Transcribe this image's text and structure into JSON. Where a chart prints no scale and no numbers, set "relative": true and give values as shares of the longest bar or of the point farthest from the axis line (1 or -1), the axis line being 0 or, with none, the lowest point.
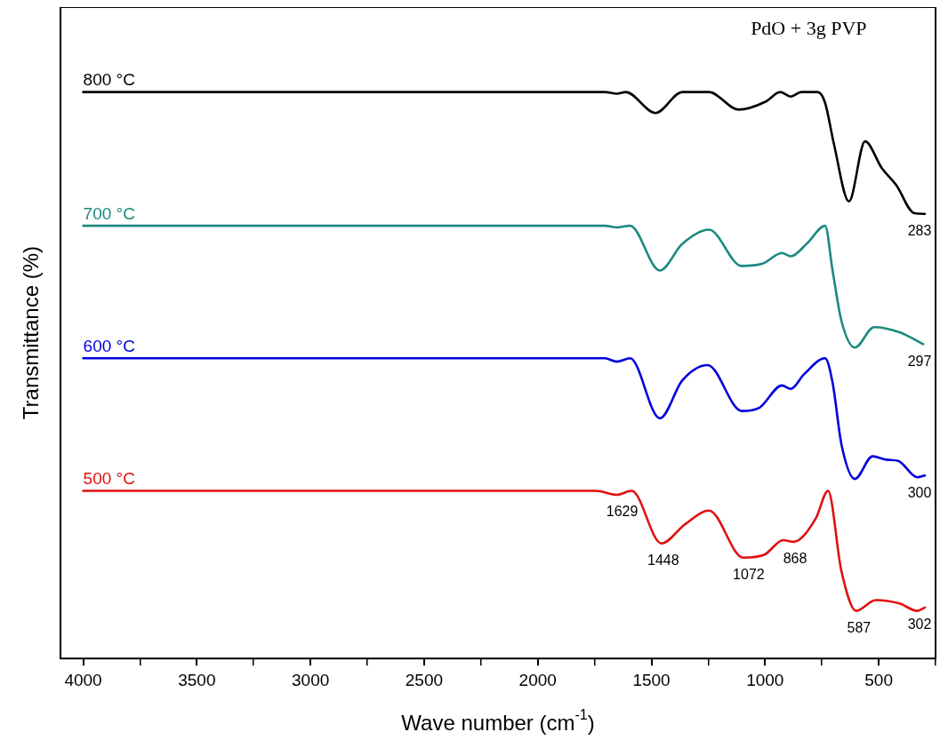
{
  "chart_data": {
    "type": "line",
    "title": "PdO + 3g PVP",
    "xlabel": "Wave number (cm$^{-1}$)",
    "ylabel": "Transmittance (%)",
    "relative": true,
    "legend": false,
    "grid": false,
    "marker": "none",
    "line_style": "solid",
    "xlim": [
      4100,
      250
    ],
    "xticks": [
      4000,
      {
        "value": 3750,
        "label": null
      },
      3500,
      {
        "value": 3250,
        "label": null
      },
      3000,
      {
        "value": 2750,
        "label": null
      },
      2500,
      {
        "value": 2250,
        "label": null
      },
      2000,
      {
        "value": 1750,
        "label": null
      },
      1500,
      {
        "value": 1250,
        "label": null
      },
      1000,
      {
        "value": 750,
        "label": null
      },
      500,
      {
        "value": 250,
        "label": null
      }
    ],
    "series": [
      {
        "name": "800 °C",
        "color": "#000000",
        "x": [
          4000,
          3000,
          2000,
          1705,
          1652,
          1613,
          1482,
          1364,
          1247,
          1116,
          998,
          933,
          887,
          841,
          769,
          736,
          697,
          631,
          560,
          487,
          422,
          343,
          297
        ],
        "values": [
          1,
          1,
          1,
          1,
          0.997,
          1,
          0.963,
          1,
          1,
          0.969,
          0.983,
          1,
          0.992,
          1,
          1,
          0.981,
          0.908,
          0.807,
          0.913,
          0.866,
          0.835,
          0.786,
          0.785
        ]
      },
      {
        "name": "700 °C",
        "color": "#1a8a80",
        "x": [
          4000,
          3000,
          2000,
          1705,
          1652,
          1594,
          1463,
          1364,
          1247,
          1103,
          1011,
          926,
          887,
          815,
          736,
          703,
          664,
          605,
          520,
          409,
          304
        ],
        "values": [
          0.764,
          0.764,
          0.764,
          0.764,
          0.761,
          0.764,
          0.685,
          0.732,
          0.757,
          0.693,
          0.697,
          0.716,
          0.71,
          0.733,
          0.764,
          0.685,
          0.596,
          0.549,
          0.585,
          0.576,
          0.555
        ]
      },
      {
        "name": "600 °C",
        "color": "#0000dd",
        "x": [
          4000,
          3000,
          2000,
          1705,
          1652,
          1594,
          1463,
          1364,
          1253,
          1103,
          1024,
          926,
          887,
          828,
          736,
          703,
          664,
          605,
          527,
          468,
          415,
          330,
          297
        ],
        "values": [
          0.53,
          0.53,
          0.53,
          0.53,
          0.524,
          0.53,
          0.424,
          0.491,
          0.518,
          0.437,
          0.443,
          0.482,
          0.476,
          0.502,
          0.53,
          0.487,
          0.378,
          0.317,
          0.357,
          0.351,
          0.349,
          0.32,
          0.323
        ]
      },
      {
        "name": "500 °C",
        "color": "#e01010",
        "x": [
          4000,
          3000,
          2000,
          1744,
          1652,
          1587,
          1456,
          1352,
          1247,
          1096,
          1004,
          920,
          874,
          776,
          723,
          664,
          599,
          513,
          409,
          330,
          297
        ],
        "values": [
          0.296,
          0.296,
          0.296,
          0.296,
          0.289,
          0.296,
          0.203,
          0.237,
          0.261,
          0.178,
          0.183,
          0.209,
          0.206,
          0.248,
          0.296,
          0.154,
          0.084,
          0.103,
          0.097,
          0.084,
          0.09
        ]
      }
    ],
    "annotations": [
      {
        "text": "1629",
        "x": 1629,
        "y": 0.289
      },
      {
        "text": "1448",
        "x": 1448,
        "y": 0.203
      },
      {
        "text": "1072",
        "x": 1072,
        "y": 0.178
      },
      {
        "text": "868",
        "x": 868,
        "y": 0.206
      },
      {
        "text": "587",
        "x": 587,
        "y": 0.084
      },
      {
        "text": "302",
        "x": 302,
        "y": 0.09
      },
      {
        "text": "300",
        "x": 300,
        "y": 0.323
      },
      {
        "text": "297",
        "x": 297,
        "y": 0.555
      },
      {
        "text": "283",
        "x": 283,
        "y": 0.785
      }
    ]
  }
}
